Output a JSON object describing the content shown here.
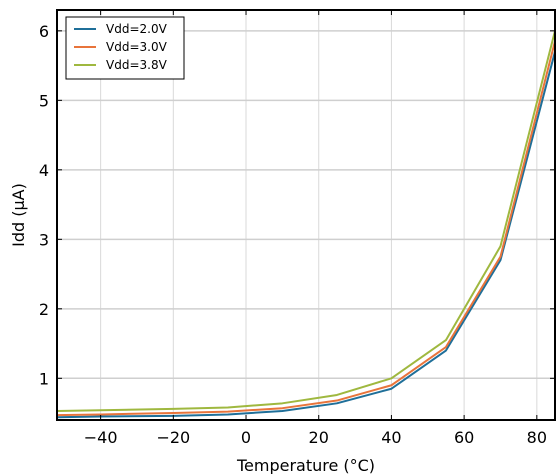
{
  "chart_data": {
    "type": "line",
    "title": "",
    "xlabel": "Temperature (°C)",
    "ylabel": "Idd (µA)",
    "xlim": [
      -52,
      85
    ],
    "ylim": [
      0.4,
      6.3
    ],
    "x_ticks": [
      -40,
      -20,
      0,
      20,
      40,
      60,
      80
    ],
    "x_tick_labels": [
      "−40",
      "−20",
      "0",
      "20",
      "40",
      "60",
      "80"
    ],
    "y_ticks": [
      1,
      2,
      3,
      4,
      5,
      6
    ],
    "y_tick_labels": [
      "1",
      "2",
      "3",
      "4",
      "5",
      "6"
    ],
    "grid": true,
    "legend_position": "top-left",
    "series": [
      {
        "name": "Vdd=2.0V",
        "color": "#1f6f99",
        "x": [
          -52,
          -40,
          -20,
          -5,
          10,
          25,
          40,
          55,
          70,
          85
        ],
        "y": [
          0.44,
          0.45,
          0.46,
          0.48,
          0.53,
          0.64,
          0.85,
          1.4,
          2.7,
          5.7
        ]
      },
      {
        "name": "Vdd=3.0V",
        "color": "#e8743b",
        "x": [
          -52,
          -40,
          -20,
          -5,
          10,
          25,
          40,
          55,
          70,
          85
        ],
        "y": [
          0.47,
          0.48,
          0.5,
          0.52,
          0.57,
          0.68,
          0.9,
          1.45,
          2.75,
          5.85
        ]
      },
      {
        "name": "Vdd=3.8V",
        "color": "#9fb83f",
        "x": [
          -52,
          -40,
          -20,
          -5,
          10,
          25,
          40,
          55,
          70,
          85
        ],
        "y": [
          0.53,
          0.54,
          0.56,
          0.58,
          0.64,
          0.76,
          1.0,
          1.55,
          2.9,
          6.0
        ]
      }
    ]
  }
}
